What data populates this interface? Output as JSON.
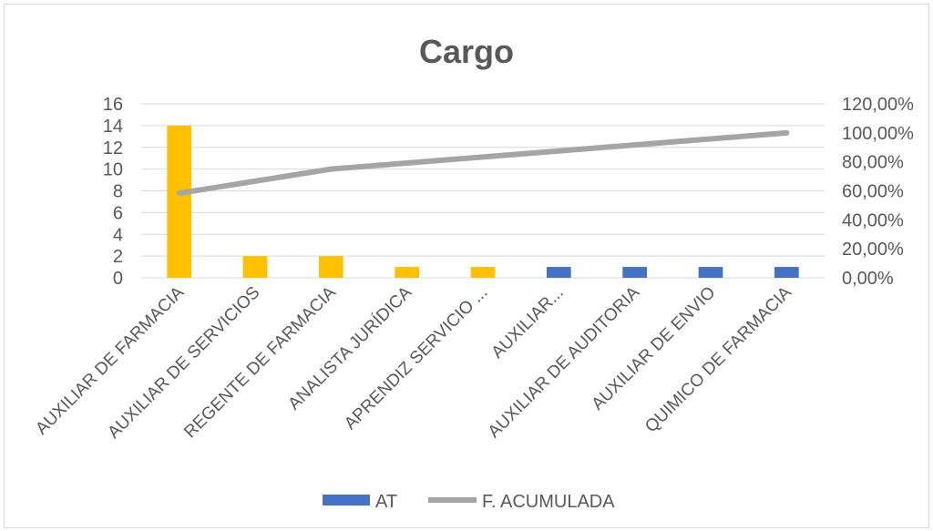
{
  "chart_data": {
    "type": "bar",
    "title": "Cargo",
    "categories": [
      "AUXILIAR DE FARMACIA",
      "AUXILIAR DE SERVICIOS",
      "REGENTE DE FARMACIA",
      "ANALISTA JURÍDICA",
      "APRENDIZ SERVICIO ...",
      "AUXILIAR...",
      "AUXILIAR DE AUDITORIA",
      "AUXILIAR DE ENVIO",
      "QUIMICO DE FARMACIA"
    ],
    "series": [
      {
        "name": "AT",
        "type": "bar",
        "axis": "left",
        "values": [
          14,
          2,
          2,
          1,
          1,
          1,
          1,
          1,
          1
        ],
        "colors": [
          "#ffc000",
          "#ffc000",
          "#ffc000",
          "#ffc000",
          "#ffc000",
          "#4472c4",
          "#4472c4",
          "#4472c4",
          "#4472c4"
        ]
      },
      {
        "name": "F. ACUMULADA",
        "type": "line",
        "axis": "right",
        "values": [
          58.33,
          66.67,
          75.0,
          79.17,
          83.33,
          87.5,
          91.67,
          95.83,
          100.0
        ],
        "color": "#a5a5a5"
      }
    ],
    "y_left": {
      "ticks": [
        "0",
        "2",
        "4",
        "6",
        "8",
        "10",
        "12",
        "14",
        "16"
      ],
      "ylim": [
        0,
        16
      ]
    },
    "y_right": {
      "ticks": [
        "0,00%",
        "20,00%",
        "40,00%",
        "60,00%",
        "80,00%",
        "100,00%",
        "120,00%"
      ],
      "ylim": [
        0,
        120
      ]
    },
    "grid": true,
    "legend": {
      "position": "bottom",
      "entries": [
        {
          "label": "AT",
          "color": "#4472c4",
          "shape": "bar"
        },
        {
          "label": "F. ACUMULADA",
          "color": "#a5a5a5",
          "shape": "line"
        }
      ]
    }
  }
}
